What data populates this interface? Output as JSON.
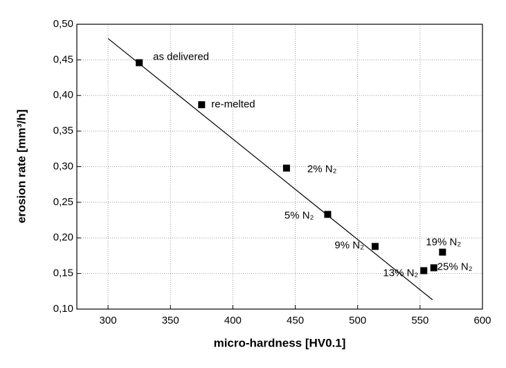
{
  "chart_data": {
    "type": "scatter",
    "xlabel": "micro-hardness [HV0.1]",
    "ylabel": "erosion rate [mm³/h]",
    "x": [
      325,
      375,
      443,
      476,
      514,
      553,
      561,
      568
    ],
    "values": [
      0.446,
      0.387,
      0.298,
      0.233,
      0.188,
      0.154,
      0.158,
      0.18
    ],
    "point_labels": [
      "as delivered",
      "re-melted",
      "2% N₂",
      "5% N₂",
      "9% N₂",
      "13% N₂",
      "25% N₂",
      "19% N₂"
    ],
    "color": "#000000",
    "fit_line": {
      "x": [
        300,
        560
      ],
      "values": [
        0.48,
        0.113
      ],
      "color": "#000000"
    },
    "xlim": [
      275,
      600
    ],
    "xticks": [
      300,
      350,
      400,
      450,
      500,
      550,
      600
    ],
    "ylim": [
      0.1,
      0.5
    ],
    "yticks": [
      {
        "value": 0.1,
        "label": "0,10"
      },
      {
        "value": 0.15,
        "label": "0,15"
      },
      {
        "value": 0.2,
        "label": "0,20"
      },
      {
        "value": 0.25,
        "label": "0,25"
      },
      {
        "value": 0.3,
        "label": "0,30"
      },
      {
        "value": 0.35,
        "label": "0,35"
      },
      {
        "value": 0.4,
        "label": "0,40"
      },
      {
        "value": 0.45,
        "label": "0,45"
      },
      {
        "value": 0.5,
        "label": "0,50"
      }
    ],
    "grid": true
  }
}
